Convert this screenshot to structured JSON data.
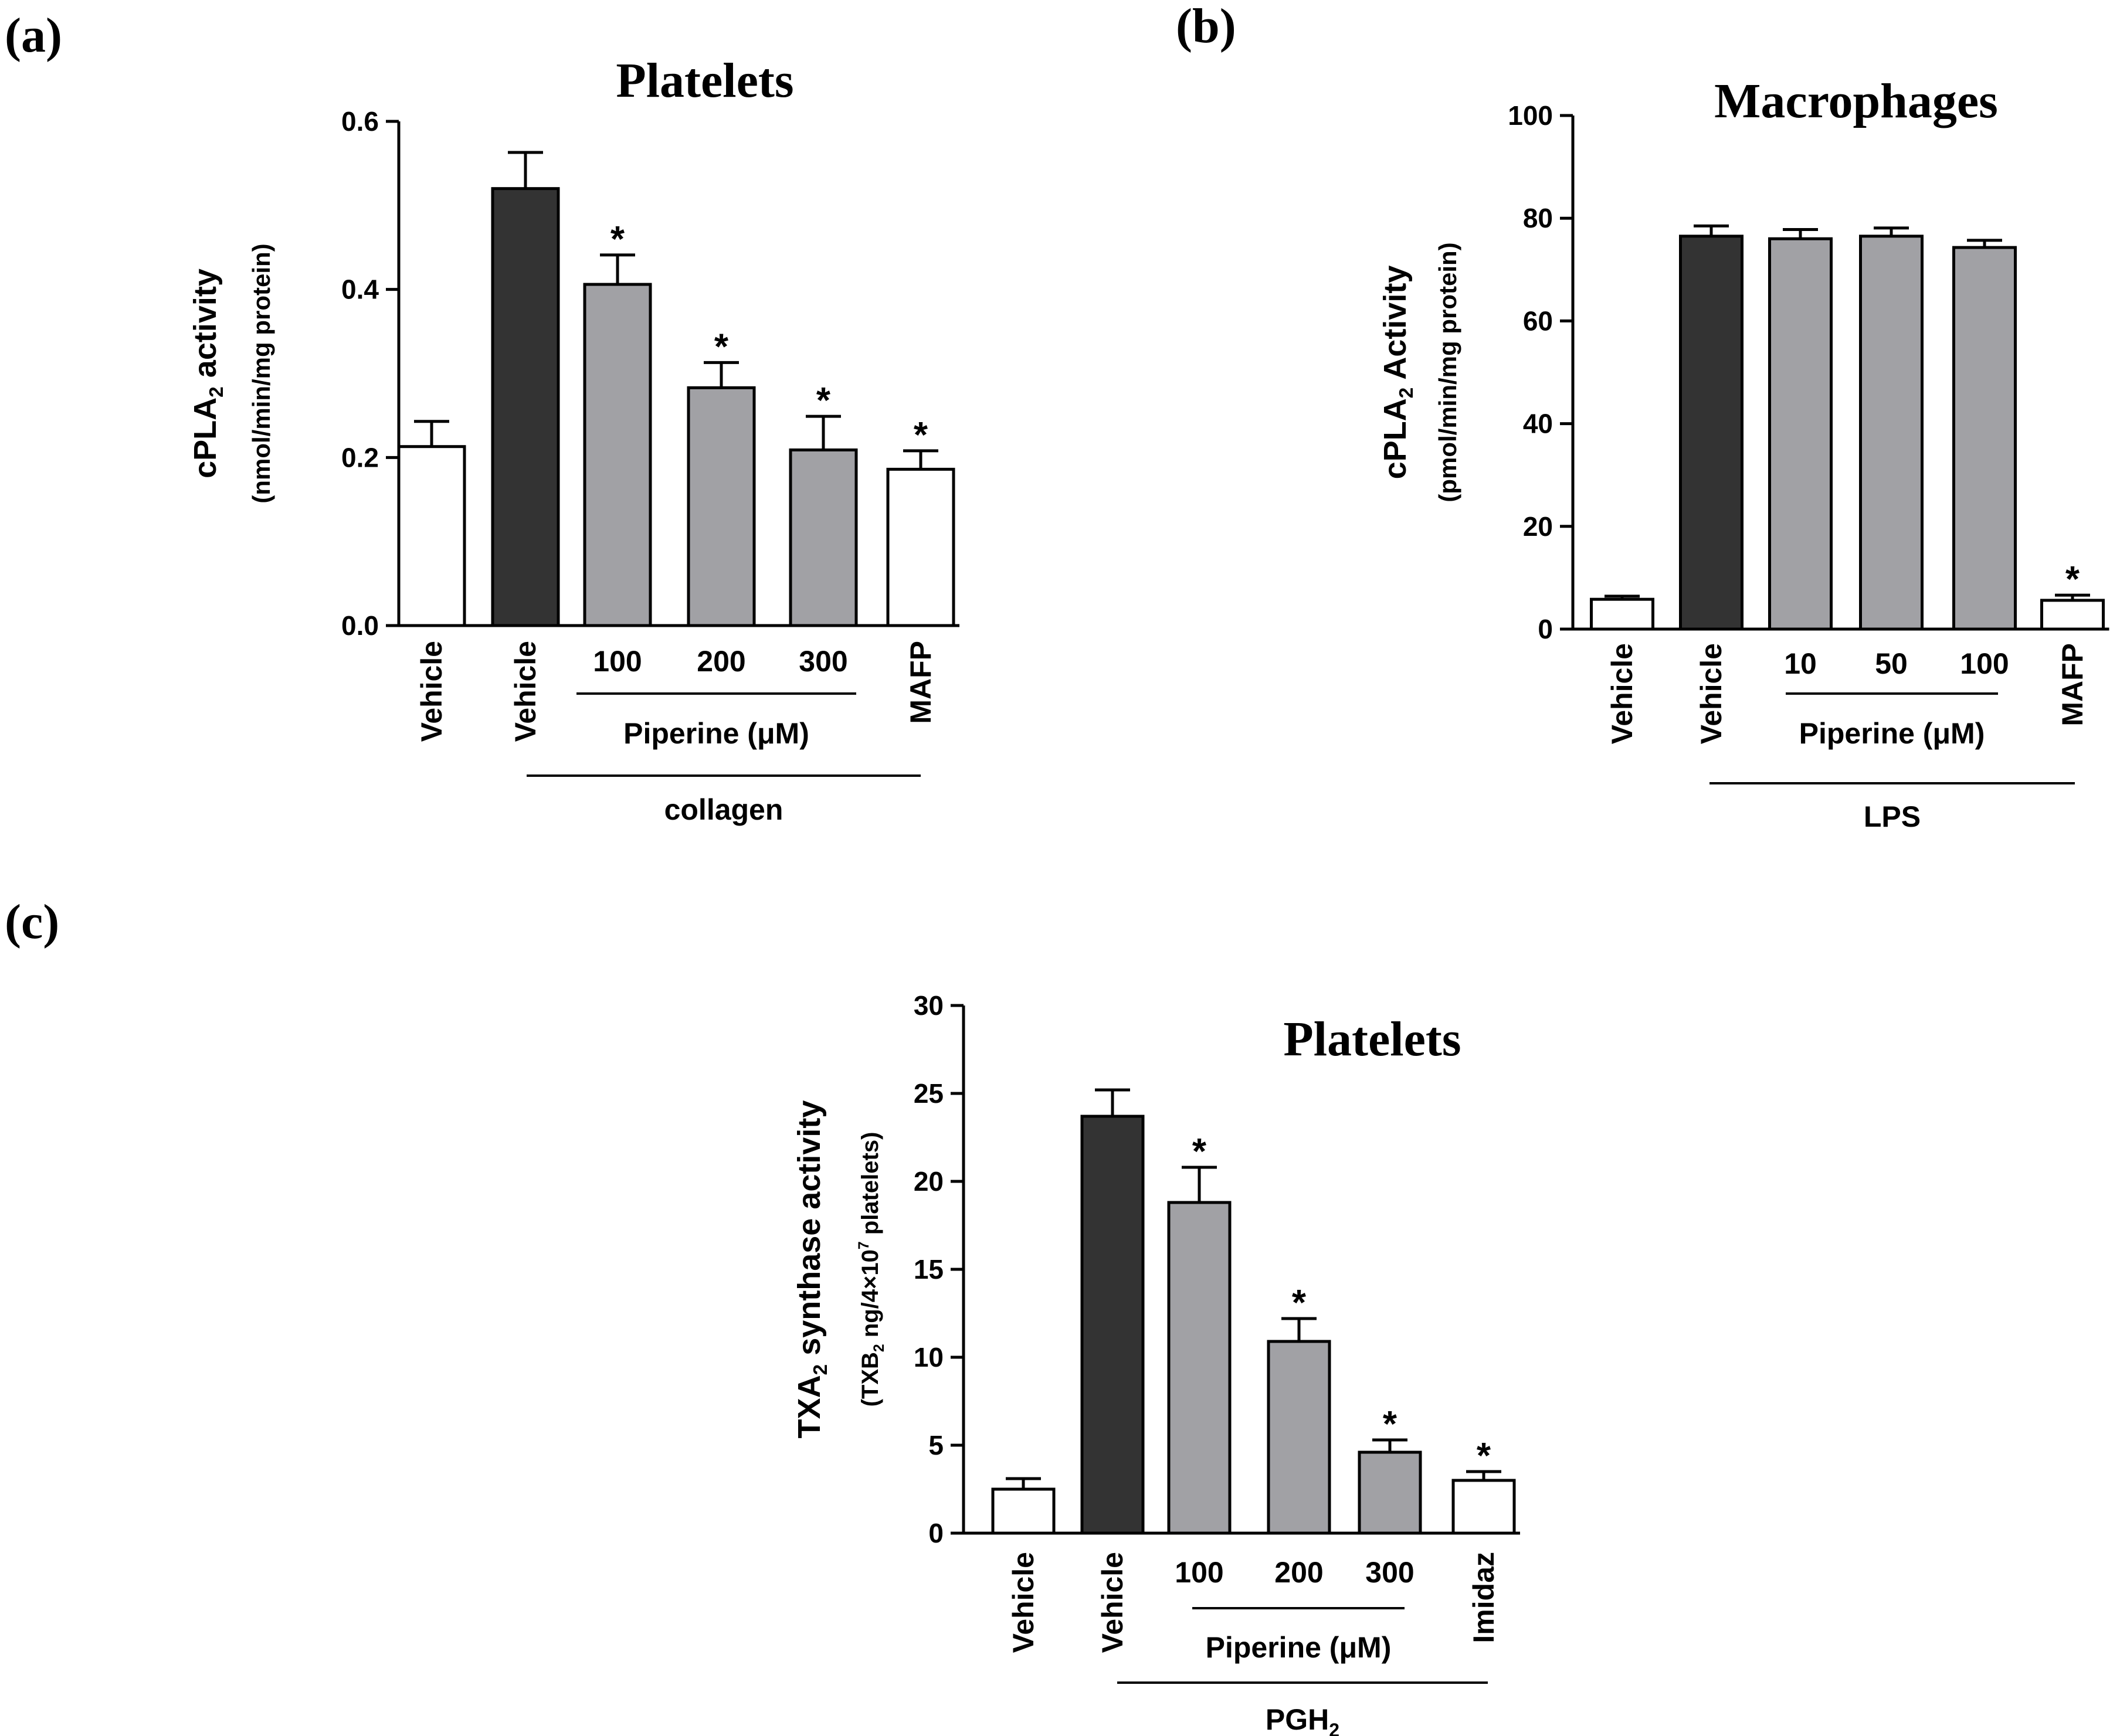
{
  "panel_labels": [
    "(a)",
    "(b)",
    "(c)"
  ],
  "colors": {
    "vehicle": "#ffffff",
    "stimulated": "#333333",
    "piperine": "#a1a1a5",
    "inhibitor": "#ffffff"
  },
  "chart_data": [
    {
      "type": "bar",
      "panel": "(a)",
      "title": "Platelets",
      "ylabel": {
        "base": "cPLA",
        "sub": "2",
        "rest": " activity"
      },
      "yunits": "(nmol/min/mg protein)",
      "ylim": [
        0,
        0.6
      ],
      "yticks": [
        "0.0",
        "0.2",
        "0.4",
        "0.6"
      ],
      "categories": [
        "Vehicle",
        "Vehicle",
        "100",
        "200",
        "300",
        "MAFP"
      ],
      "rotated": [
        true,
        true,
        false,
        false,
        false,
        true
      ],
      "values": [
        0.213,
        0.52,
        0.406,
        0.283,
        0.209,
        0.186
      ],
      "errors": [
        0.03,
        0.043,
        0.035,
        0.03,
        0.04,
        0.022
      ],
      "significant": [
        false,
        false,
        true,
        true,
        true,
        true
      ],
      "fills": [
        "vehicle",
        "stimulated",
        "piperine",
        "piperine",
        "piperine",
        "inhibitor"
      ],
      "star": "*",
      "dose_group": {
        "label": {
          "base": "Piperine (μM)"
        },
        "from": 2,
        "to": 4
      },
      "treatment_group": {
        "label": {
          "base": "collagen"
        },
        "from": 1,
        "to": 5
      }
    },
    {
      "type": "bar",
      "panel": "(b)",
      "title": "Macrophages",
      "ylabel": {
        "base": "cPLA",
        "sub": "2",
        "rest": " Activity"
      },
      "yunits": "(pmol/min/mg protein)",
      "ylim": [
        0,
        100
      ],
      "yticks": [
        "0",
        "20",
        "40",
        "60",
        "80",
        "100"
      ],
      "categories": [
        "Vehicle",
        "Vehicle",
        "10",
        "50",
        "100",
        "MAFP"
      ],
      "rotated": [
        true,
        true,
        false,
        false,
        false,
        true
      ],
      "values": [
        5.8,
        76.5,
        76.0,
        76.5,
        74.3,
        5.6
      ],
      "errors": [
        0.6,
        2.0,
        1.8,
        1.6,
        1.4,
        1.0
      ],
      "significant": [
        false,
        false,
        false,
        false,
        false,
        true
      ],
      "fills": [
        "vehicle",
        "stimulated",
        "piperine",
        "piperine",
        "piperine",
        "inhibitor"
      ],
      "star": "*",
      "dose_group": {
        "label": {
          "base": "Piperine (μM)"
        },
        "from": 2,
        "to": 4
      },
      "treatment_group": {
        "label": {
          "base": "LPS"
        },
        "from": 1,
        "to": 5
      }
    },
    {
      "type": "bar",
      "panel": "(c)",
      "title": "Platelets",
      "ylabel": {
        "base": "TXA",
        "sub": "2",
        "rest": " synthase activity"
      },
      "yunits": {
        "pre": "(TXB",
        "sub": "2",
        "mid": " ng/4×10",
        "sup": "7",
        "post": " platelets)"
      },
      "ylim": [
        0,
        30
      ],
      "yticks": [
        "0",
        "5",
        "10",
        "15",
        "20",
        "25",
        "30"
      ],
      "categories": [
        "Vehicle",
        "Vehicle",
        "100",
        "200",
        "300",
        "Imidaz"
      ],
      "rotated": [
        true,
        true,
        false,
        false,
        false,
        true
      ],
      "values": [
        2.5,
        23.7,
        18.8,
        10.9,
        4.6,
        3.0
      ],
      "errors": [
        0.6,
        1.5,
        2.0,
        1.3,
        0.7,
        0.5
      ],
      "significant": [
        false,
        false,
        true,
        true,
        true,
        true
      ],
      "fills": [
        "vehicle",
        "stimulated",
        "piperine",
        "piperine",
        "piperine",
        "inhibitor"
      ],
      "star": "*",
      "dose_group": {
        "label": {
          "base": "Piperine (μM)"
        },
        "from": 2,
        "to": 4
      },
      "treatment_group": {
        "label": {
          "base": "PGH",
          "sub": "2"
        },
        "from": 1,
        "to": 5
      }
    }
  ]
}
